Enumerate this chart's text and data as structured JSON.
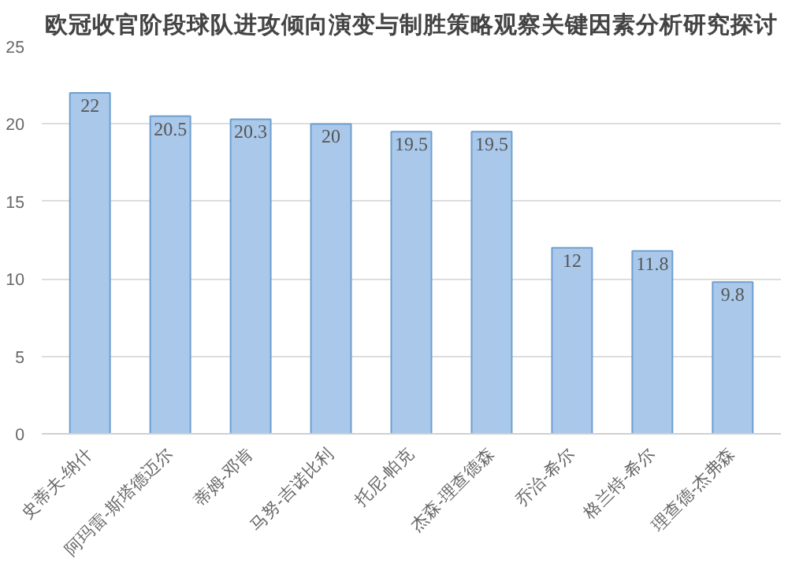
{
  "chart_data": {
    "type": "bar",
    "title": "欧冠收官阶段球队进攻倾向演变与制胜策略观察关键因素分析研究探讨",
    "categories": [
      "史蒂夫-纳什",
      "阿玛雷-斯塔德迈尔",
      "蒂姆-邓肯",
      "马努-吉诺比利",
      "托尼-帕克",
      "杰森-理查德森",
      "乔治-希尔",
      "格兰特-希尔",
      "理查德-杰弗森"
    ],
    "values": [
      22,
      20.5,
      20.3,
      20,
      19.5,
      19.5,
      12,
      11.8,
      9.8
    ],
    "color": "#a9c8ea",
    "ylim": [
      0,
      25
    ],
    "yticks": [
      0,
      5,
      10,
      15,
      20,
      25
    ],
    "grid": "y",
    "data_labels": true
  }
}
